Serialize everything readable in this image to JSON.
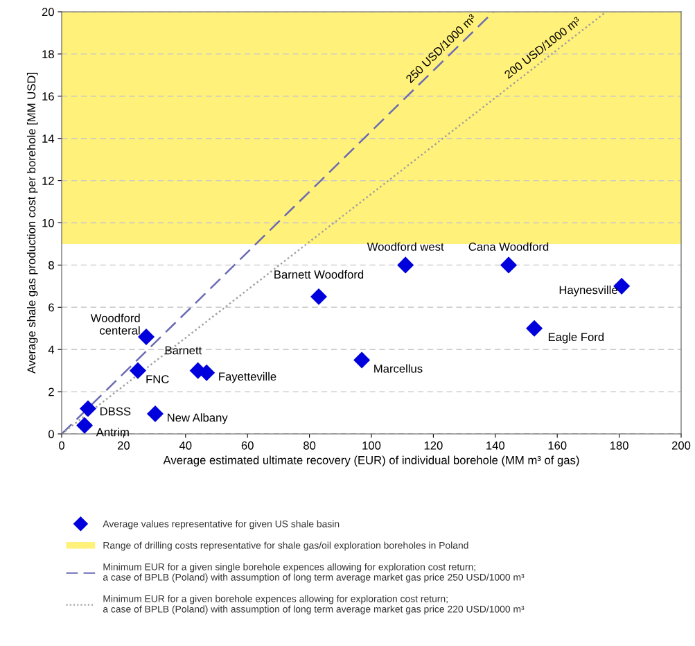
{
  "chart_data": {
    "type": "scatter",
    "xlabel": "Average estimated ultimate recovery (EUR) of individual borehole (MM m³ of gas)",
    "ylabel": "Average shale gas production cost per borehole [MM USD]",
    "xlim": [
      0,
      200
    ],
    "xticks": [
      0,
      20,
      40,
      60,
      80,
      100,
      120,
      140,
      160,
      180,
      200
    ],
    "ylim": [
      0,
      20
    ],
    "yticks": [
      0,
      2,
      4,
      6,
      8,
      10,
      12,
      14,
      16,
      18,
      20
    ],
    "grid": "y",
    "legend": "bottom",
    "series": [
      {
        "name": "Average values representative for given US shale basin",
        "marker": "diamond",
        "color": "#0000dd",
        "x": [
          7.4,
          8.5,
          30.2,
          24.6,
          27.3,
          44,
          46.8,
          83,
          96.9,
          111,
          144.3,
          152.6,
          180.8
        ],
        "values": [
          0.4,
          1.2,
          0.95,
          3.0,
          4.6,
          3.0,
          2.9,
          6.5,
          3.5,
          8.0,
          8.0,
          5.0,
          7.0
        ]
      },
      {
        "name": "Minimum EUR for a given single borehole expences allowing for exploration cost return;\na case of BPLB (Poland) with assumption of long term average market gas price 250 USD/1000 m³",
        "type": "line",
        "marker": "none",
        "line_style": "dashed",
        "color": "#6a6ab4",
        "x": [
          0,
          139.4
        ],
        "values": [
          0,
          20
        ]
      },
      {
        "name": "Minimum EUR for a given borehole expences allowing for exploration cost return;\na case of BPLB (Poland) with assumption of long term average market gas price 220 USD/1000 m³",
        "type": "line",
        "marker": "none",
        "line_style": "dotted",
        "color": "#a0a0a0",
        "x": [
          0,
          175.8
        ],
        "values": [
          0,
          20
        ]
      }
    ],
    "bands": [
      {
        "axis": "y",
        "from": 9,
        "to": 20,
        "label": "Range of drilling costs representative for shale gas/oil exploration boreholes in Poland",
        "color": "#fff17a"
      }
    ],
    "annotations": [
      {
        "text": "Antrim",
        "x": 7.4,
        "y": 0.4
      },
      {
        "text": "DBSS",
        "x": 8.5,
        "y": 1.2
      },
      {
        "text": "New Albany",
        "x": 30.2,
        "y": 0.95
      },
      {
        "text": "FNC",
        "x": 24.6,
        "y": 3.0
      },
      {
        "text": "Woodford\ncenteral",
        "x": 27.3,
        "y": 4.6
      },
      {
        "text": "Barnett",
        "x": 44,
        "y": 3.0
      },
      {
        "text": "Fayetteville",
        "x": 46.8,
        "y": 2.9
      },
      {
        "text": "Barnett Woodford",
        "x": 83,
        "y": 6.5
      },
      {
        "text": "Marcellus",
        "x": 96.9,
        "y": 3.5
      },
      {
        "text": "Woodford west",
        "x": 111,
        "y": 8.0
      },
      {
        "text": "Cana Woodford",
        "x": 144.3,
        "y": 8.0
      },
      {
        "text": "Eagle Ford",
        "x": 152.6,
        "y": 5.0
      },
      {
        "text": "Haynesville",
        "x": 180.8,
        "y": 7.0
      },
      {
        "text": "250 USD/1000 m³",
        "x": 124.8,
        "y": 17.9
      },
      {
        "text": "200 USD/1000 m³",
        "x": 157.3,
        "y": 17.9
      }
    ]
  }
}
